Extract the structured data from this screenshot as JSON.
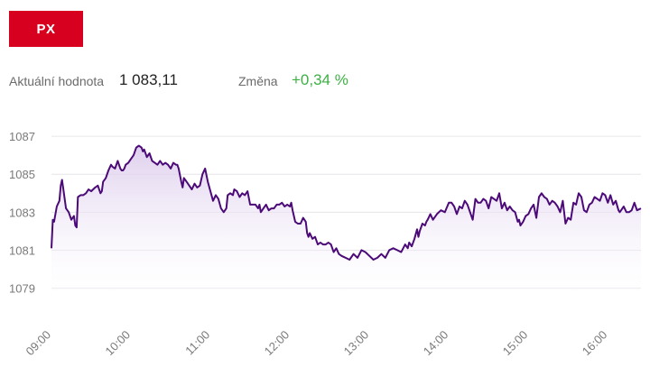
{
  "index_tab": {
    "label": "PX"
  },
  "stats": {
    "current_label": "Aktuální hodnota",
    "current_value": "1 083,11",
    "change_label": "Změna",
    "change_value": "+0,34 %"
  },
  "colors": {
    "tab_bg": "#d7001e",
    "line": "#4b0a78",
    "area_top": "#d9c7ea",
    "positive": "#3cb043"
  },
  "chart_data": {
    "type": "area",
    "title": "",
    "xlabel": "",
    "ylabel": "",
    "ylim": [
      1078.6,
      1088.0
    ],
    "y_ticks": [
      1079,
      1081,
      1083,
      1085,
      1087
    ],
    "y_tick_labels": [
      "1079",
      "1081",
      "1083",
      "1085",
      "1087"
    ],
    "x_ticks": [
      "09:00",
      "10:00",
      "11:00",
      "12:00",
      "13:00",
      "14:00",
      "15:00",
      "16:00"
    ],
    "x_range": [
      "09:00",
      "16:25"
    ],
    "grid": true,
    "series": [
      {
        "x": [
          "09:00",
          "09:01",
          "09:02",
          "09:04",
          "09:06",
          "09:07",
          "09:08",
          "09:09",
          "09:11",
          "09:13",
          "09:15",
          "09:17",
          "09:18",
          "09:19",
          "09:20",
          "09:22",
          "09:24",
          "09:26",
          "09:28",
          "09:30",
          "09:33",
          "09:35",
          "09:37",
          "09:38",
          "09:39",
          "09:41",
          "09:43",
          "09:45",
          "09:46",
          "09:48",
          "09:50",
          "09:52",
          "09:53",
          "09:54",
          "09:55",
          "09:56",
          "09:58",
          "10:00",
          "10:02",
          "10:04",
          "10:06",
          "10:08",
          "10:09",
          "10:10",
          "10:12",
          "10:14",
          "10:16",
          "10:18",
          "10:20",
          "10:22",
          "10:24",
          "10:26",
          "10:28",
          "10:30",
          "10:32",
          "10:34",
          "10:35",
          "10:36",
          "10:38",
          "10:39",
          "10:40",
          "10:42",
          "10:44",
          "10:46",
          "10:48",
          "10:50",
          "10:52",
          "10:54",
          "10:56",
          "10:58",
          "11:00",
          "11:02",
          "11:04",
          "11:06",
          "11:08",
          "11:10",
          "11:12",
          "11:13",
          "11:15",
          "11:17",
          "11:18",
          "11:20",
          "11:22",
          "11:24",
          "11:26",
          "11:28",
          "11:30",
          "11:32",
          "11:34",
          "11:36",
          "11:37",
          "11:38",
          "11:40",
          "11:42",
          "11:44",
          "11:46",
          "11:48",
          "11:50",
          "11:52",
          "11:54",
          "11:56",
          "11:58",
          "12:00",
          "12:01",
          "12:02",
          "12:04",
          "12:06",
          "12:08",
          "12:10",
          "12:12",
          "12:13",
          "12:14",
          "12:15",
          "12:17",
          "12:19",
          "12:21",
          "12:23",
          "12:25",
          "12:27",
          "12:29",
          "12:31",
          "12:33",
          "12:35",
          "12:37",
          "12:39",
          "12:42",
          "12:45",
          "12:48",
          "12:51",
          "12:54",
          "12:57",
          "13:00",
          "13:03",
          "13:06",
          "13:09",
          "13:12",
          "13:15",
          "13:18",
          "13:21",
          "13:24",
          "13:27",
          "13:29",
          "13:30",
          "13:32",
          "13:34",
          "13:36",
          "13:37",
          "13:38",
          "13:40",
          "13:42",
          "13:43",
          "13:44",
          "13:46",
          "13:48",
          "13:51",
          "13:54",
          "13:57",
          "14:00",
          "14:02",
          "14:04",
          "14:06",
          "14:08",
          "14:10",
          "14:12",
          "14:14",
          "14:16",
          "14:18",
          "14:20",
          "14:22",
          "14:24",
          "14:26",
          "14:28",
          "14:30",
          "14:32",
          "14:34",
          "14:36",
          "14:38",
          "14:40",
          "14:42",
          "14:44",
          "14:46",
          "14:48",
          "14:50",
          "14:52",
          "14:53",
          "14:54",
          "14:56",
          "14:58",
          "15:00",
          "15:02",
          "15:04",
          "15:06",
          "15:08",
          "15:10",
          "15:12",
          "15:14",
          "15:16",
          "15:18",
          "15:20",
          "15:22",
          "15:24",
          "15:26",
          "15:28",
          "15:30",
          "15:32",
          "15:34",
          "15:36",
          "15:38",
          "15:40",
          "15:42",
          "15:44",
          "15:46",
          "15:48",
          "15:50",
          "15:52",
          "15:54",
          "15:56",
          "15:58",
          "16:00",
          "16:02",
          "16:04",
          "16:06",
          "16:08",
          "16:09",
          "16:10",
          "16:12",
          "16:14",
          "16:16",
          "16:18",
          "16:20",
          "16:22",
          "16:25"
        ],
        "values": [
          1081.1,
          1082.6,
          1082.5,
          1083.3,
          1083.6,
          1084.4,
          1084.7,
          1084.2,
          1083.2,
          1083.0,
          1082.6,
          1082.8,
          1082.3,
          1082.2,
          1083.8,
          1083.9,
          1083.9,
          1084.0,
          1084.2,
          1084.1,
          1084.3,
          1084.4,
          1084.0,
          1084.1,
          1084.6,
          1084.8,
          1085.2,
          1085.5,
          1085.4,
          1085.3,
          1085.7,
          1085.3,
          1085.2,
          1085.2,
          1085.3,
          1085.5,
          1085.6,
          1085.8,
          1086.0,
          1086.4,
          1086.5,
          1086.4,
          1086.2,
          1086.3,
          1085.9,
          1086.1,
          1085.7,
          1085.6,
          1085.5,
          1085.7,
          1085.5,
          1085.6,
          1085.5,
          1085.3,
          1085.6,
          1085.5,
          1085.5,
          1085.3,
          1084.6,
          1084.3,
          1084.8,
          1084.6,
          1084.4,
          1084.2,
          1084.5,
          1084.3,
          1084.4,
          1085.0,
          1085.3,
          1084.6,
          1084.1,
          1083.6,
          1083.9,
          1083.7,
          1083.2,
          1083.0,
          1083.2,
          1083.9,
          1084.0,
          1083.9,
          1084.2,
          1084.1,
          1083.8,
          1084.0,
          1083.9,
          1084.1,
          1083.4,
          1083.4,
          1083.4,
          1083.2,
          1083.4,
          1083.0,
          1083.2,
          1083.4,
          1083.1,
          1083.2,
          1083.2,
          1083.4,
          1083.4,
          1083.5,
          1083.3,
          1083.4,
          1083.3,
          1083.5,
          1083.1,
          1082.5,
          1082.4,
          1082.4,
          1082.7,
          1082.5,
          1081.9,
          1081.7,
          1081.9,
          1081.6,
          1081.7,
          1081.3,
          1081.4,
          1081.3,
          1081.3,
          1081.4,
          1081.3,
          1080.9,
          1081.1,
          1080.8,
          1080.7,
          1080.6,
          1080.5,
          1080.8,
          1080.6,
          1081.0,
          1080.9,
          1080.7,
          1080.5,
          1080.6,
          1080.8,
          1080.6,
          1081.0,
          1081.1,
          1081.0,
          1080.9,
          1081.3,
          1081.1,
          1081.4,
          1081.2,
          1081.6,
          1082.1,
          1081.7,
          1082.0,
          1082.4,
          1082.3,
          1082.5,
          1082.6,
          1082.9,
          1082.6,
          1082.9,
          1083.1,
          1083.0,
          1083.5,
          1083.5,
          1083.3,
          1082.9,
          1083.3,
          1083.2,
          1083.6,
          1083.4,
          1083.0,
          1082.6,
          1083.7,
          1083.5,
          1083.5,
          1083.7,
          1083.6,
          1083.2,
          1083.8,
          1083.7,
          1083.6,
          1084.0,
          1083.2,
          1083.5,
          1083.1,
          1083.3,
          1083.1,
          1083.0,
          1082.5,
          1082.6,
          1082.3,
          1082.5,
          1082.8,
          1082.9,
          1083.2,
          1083.4,
          1082.7,
          1083.8,
          1084.0,
          1083.8,
          1083.7,
          1083.4,
          1083.6,
          1083.5,
          1083.3,
          1083.0,
          1083.6,
          1082.4,
          1082.7,
          1082.6,
          1083.5,
          1083.4,
          1084.0,
          1083.8,
          1083.1,
          1083.0,
          1083.4,
          1083.5,
          1083.8,
          1083.7,
          1083.6,
          1084.0,
          1083.9,
          1083.5,
          1083.9,
          1083.4,
          1083.6,
          1083.1,
          1083.0,
          1083.1,
          1083.3,
          1083.0,
          1083.0,
          1083.1,
          1083.5,
          1083.1,
          1083.2
        ]
      }
    ]
  }
}
